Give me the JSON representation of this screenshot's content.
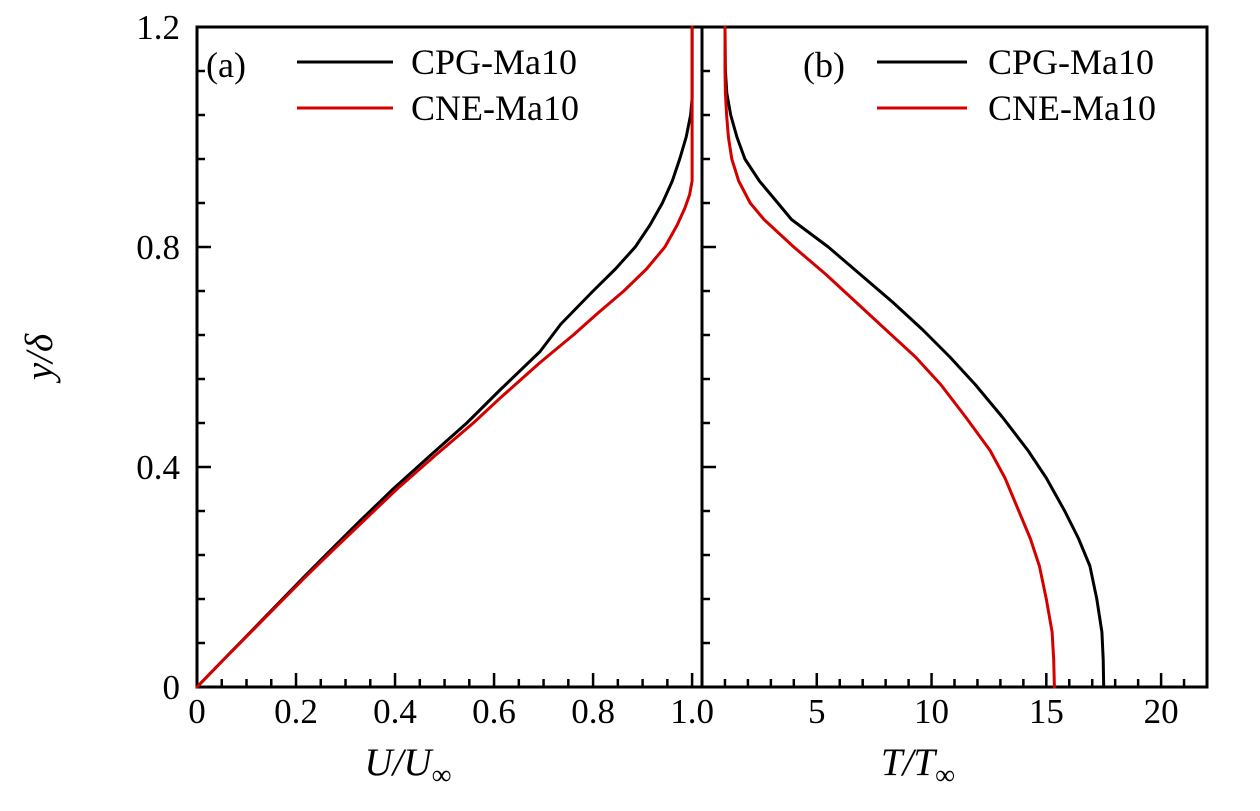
{
  "figure": {
    "background": "#ffffff",
    "axis_color": "#000000",
    "y_axis": {
      "title": "y/δ",
      "range": [
        0,
        1.2
      ],
      "tick_values": [
        0,
        0.4,
        0.8,
        1.2
      ],
      "tick_labels": [
        "0",
        "0.4",
        "0.8",
        "1.2"
      ],
      "minor_step": 0.08
    },
    "legend": {
      "items": [
        {
          "label": "CPG-Ma10",
          "color": "#000000"
        },
        {
          "label": "CNE-Ma10",
          "color": "#d40000"
        }
      ]
    },
    "panels": [
      {
        "tag": "(a)",
        "xlabel_main": "U/U",
        "xlabel_sub": "∞",
        "x_range": [
          0,
          1.02
        ],
        "x_tick_values": [
          0,
          0.2,
          0.4,
          0.6,
          0.8,
          1.0
        ],
        "x_tick_labels": [
          "0",
          "0.2",
          "0.4",
          "0.6",
          "0.8",
          "1.0"
        ],
        "x_minor_step": 0.05
      },
      {
        "tag": "(b)",
        "xlabel_main": "T/T",
        "xlabel_sub": "∞",
        "x_range": [
          0,
          22
        ],
        "x_tick_values": [
          5,
          10,
          15,
          20
        ],
        "x_tick_labels": [
          "5",
          "10",
          "15",
          "20"
        ],
        "x_minor_step": 1
      }
    ]
  },
  "chart_data": [
    {
      "type": "line",
      "panel": "a",
      "xlabel": "U/U∞",
      "ylabel": "y/δ",
      "xlim": [
        0,
        1.02
      ],
      "ylim": [
        0,
        1.2
      ],
      "grid": false,
      "legend_position": "upper-left",
      "series": [
        {
          "name": "CPG-Ma10",
          "color": "#000000",
          "points": [
            [
              0.0,
              0.0
            ],
            [
              0.054,
              0.05
            ],
            [
              0.108,
              0.1
            ],
            [
              0.162,
              0.15
            ],
            [
              0.216,
              0.2
            ],
            [
              0.271,
              0.25
            ],
            [
              0.327,
              0.3
            ],
            [
              0.396,
              0.36
            ],
            [
              0.47,
              0.42
            ],
            [
              0.545,
              0.48
            ],
            [
              0.612,
              0.54
            ],
            [
              0.693,
              0.61
            ],
            [
              0.735,
              0.66
            ],
            [
              0.8,
              0.72
            ],
            [
              0.845,
              0.76
            ],
            [
              0.885,
              0.8
            ],
            [
              0.915,
              0.84
            ],
            [
              0.94,
              0.88
            ],
            [
              0.96,
              0.92
            ],
            [
              0.975,
              0.96
            ],
            [
              0.988,
              1.0
            ],
            [
              0.997,
              1.04
            ],
            [
              1.0,
              1.07
            ],
            [
              1.0,
              1.2
            ]
          ]
        },
        {
          "name": "CNE-Ma10",
          "color": "#d40000",
          "points": [
            [
              0.0,
              0.0
            ],
            [
              0.054,
              0.05
            ],
            [
              0.109,
              0.1
            ],
            [
              0.164,
              0.15
            ],
            [
              0.219,
              0.2
            ],
            [
              0.276,
              0.25
            ],
            [
              0.334,
              0.3
            ],
            [
              0.404,
              0.36
            ],
            [
              0.48,
              0.42
            ],
            [
              0.558,
              0.48
            ],
            [
              0.612,
              0.525
            ],
            [
              0.693,
              0.59
            ],
            [
              0.76,
              0.64
            ],
            [
              0.81,
              0.68
            ],
            [
              0.862,
              0.72
            ],
            [
              0.908,
              0.76
            ],
            [
              0.945,
              0.8
            ],
            [
              0.97,
              0.84
            ],
            [
              0.985,
              0.87
            ],
            [
              0.995,
              0.895
            ],
            [
              1.0,
              0.92
            ],
            [
              1.0,
              1.2
            ]
          ]
        }
      ]
    },
    {
      "type": "line",
      "panel": "b",
      "xlabel": "T/T∞",
      "ylabel": "y/δ",
      "xlim": [
        0,
        22
      ],
      "ylim": [
        0,
        1.2
      ],
      "grid": false,
      "legend_position": "upper-left",
      "series": [
        {
          "name": "CPG-Ma10",
          "color": "#000000",
          "points": [
            [
              17.5,
              0.0
            ],
            [
              17.48,
              0.05
            ],
            [
              17.42,
              0.1
            ],
            [
              17.2,
              0.16
            ],
            [
              16.9,
              0.22
            ],
            [
              16.4,
              0.27
            ],
            [
              15.8,
              0.32
            ],
            [
              15.0,
              0.38
            ],
            [
              14.2,
              0.43
            ],
            [
              13.1,
              0.49
            ],
            [
              11.9,
              0.55
            ],
            [
              10.8,
              0.6
            ],
            [
              9.6,
              0.65
            ],
            [
              8.3,
              0.7
            ],
            [
              6.9,
              0.75
            ],
            [
              5.5,
              0.8
            ],
            [
              3.9,
              0.85
            ],
            [
              3.3,
              0.88
            ],
            [
              2.5,
              0.92
            ],
            [
              1.87,
              0.96
            ],
            [
              1.52,
              1.0
            ],
            [
              1.25,
              1.04
            ],
            [
              1.08,
              1.08
            ],
            [
              1.02,
              1.12
            ],
            [
              1.0,
              1.2
            ]
          ]
        },
        {
          "name": "CNE-Ma10",
          "color": "#d40000",
          "points": [
            [
              15.35,
              0.0
            ],
            [
              15.32,
              0.05
            ],
            [
              15.25,
              0.1
            ],
            [
              15.0,
              0.16
            ],
            [
              14.7,
              0.22
            ],
            [
              14.3,
              0.27
            ],
            [
              13.8,
              0.32
            ],
            [
              13.2,
              0.38
            ],
            [
              12.55,
              0.43
            ],
            [
              11.5,
              0.49
            ],
            [
              10.4,
              0.55
            ],
            [
              9.3,
              0.6
            ],
            [
              8.0,
              0.65
            ],
            [
              6.7,
              0.7
            ],
            [
              5.4,
              0.75
            ],
            [
              4.0,
              0.8
            ],
            [
              2.7,
              0.85
            ],
            [
              2.1,
              0.88
            ],
            [
              1.6,
              0.92
            ],
            [
              1.3,
              0.96
            ],
            [
              1.15,
              1.0
            ],
            [
              1.07,
              1.04
            ],
            [
              1.02,
              1.08
            ],
            [
              1.0,
              1.12
            ],
            [
              1.0,
              1.2
            ]
          ]
        }
      ]
    }
  ]
}
